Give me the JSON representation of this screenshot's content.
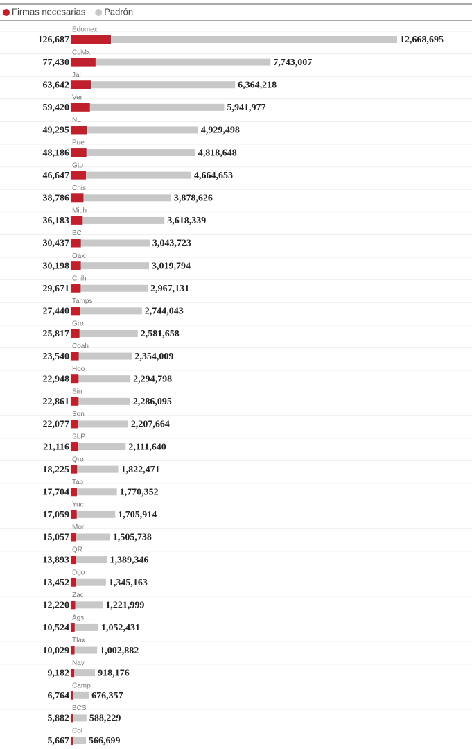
{
  "chart_data": {
    "type": "bar",
    "orientation": "horizontal",
    "categories": [
      "Edomex",
      "CdMx",
      "Jal",
      "Ver",
      "NL",
      "Pue",
      "Gto",
      "Chis",
      "Mich",
      "BC",
      "Oax",
      "Chih",
      "Tamps",
      "Gro",
      "Coah",
      "Hgo",
      "Sin",
      "Son",
      "SLP",
      "Qro",
      "Tab",
      "Yuc",
      "Mor",
      "QR",
      "Dgo",
      "Zac",
      "Ags",
      "Tlax",
      "Nay",
      "Camp",
      "BCS",
      "Col"
    ],
    "series": [
      {
        "name": "Firmas necesarias",
        "color": "#c0202c",
        "values": [
          126687,
          77430,
          63642,
          59420,
          49295,
          48186,
          46647,
          38786,
          36183,
          30437,
          30198,
          29671,
          27440,
          25817,
          23540,
          22948,
          22861,
          22077,
          21116,
          18225,
          17704,
          17059,
          15057,
          13893,
          13452,
          12220,
          10524,
          10029,
          9182,
          6764,
          5882,
          5667
        ],
        "value_labels": [
          "126,687",
          "77,430",
          "63,642",
          "59,420",
          "49,295",
          "48,186",
          "46,647",
          "38,786",
          "36,183",
          "30,437",
          "30,198",
          "29,671",
          "27,440",
          "25,817",
          "23,540",
          "22,948",
          "22,861",
          "22,077",
          "21,116",
          "18,225",
          "17,704",
          "17,059",
          "15,057",
          "13,893",
          "13,452",
          "12,220",
          "10,524",
          "10,029",
          "9,182",
          "6,764",
          "5,882",
          "5,667"
        ]
      },
      {
        "name": "Padrón",
        "color": "#c8c8c8",
        "values": [
          12668695,
          7743007,
          6364218,
          5941977,
          4929498,
          4818648,
          4664653,
          3878626,
          3618339,
          3043723,
          3019794,
          2967131,
          2744043,
          2581658,
          2354009,
          2294798,
          2286095,
          2207664,
          2111640,
          1822471,
          1770352,
          1705914,
          1505738,
          1389346,
          1345163,
          1221999,
          1052431,
          1002882,
          918176,
          676357,
          588229,
          566699
        ],
        "value_labels": [
          "12,668,695",
          "7,743,007",
          "6,364,218",
          "5,941,977",
          "4,929,498",
          "4,818,648",
          "4,664,653",
          "3,878,626",
          "3,618,339",
          "3,043,723",
          "3,019,794",
          "2,967,131",
          "2,744,043",
          "2,581,658",
          "2,354,009",
          "2,294,798",
          "2,286,095",
          "2,207,664",
          "2,111,640",
          "1,822,471",
          "1,770,352",
          "1,705,914",
          "1,505,738",
          "1,389,346",
          "1,345,163",
          "1,221,999",
          "1,052,431",
          "1,002,882",
          "918,176",
          "676,357",
          "588,229",
          "566,699"
        ]
      }
    ],
    "legend": "top-left"
  }
}
